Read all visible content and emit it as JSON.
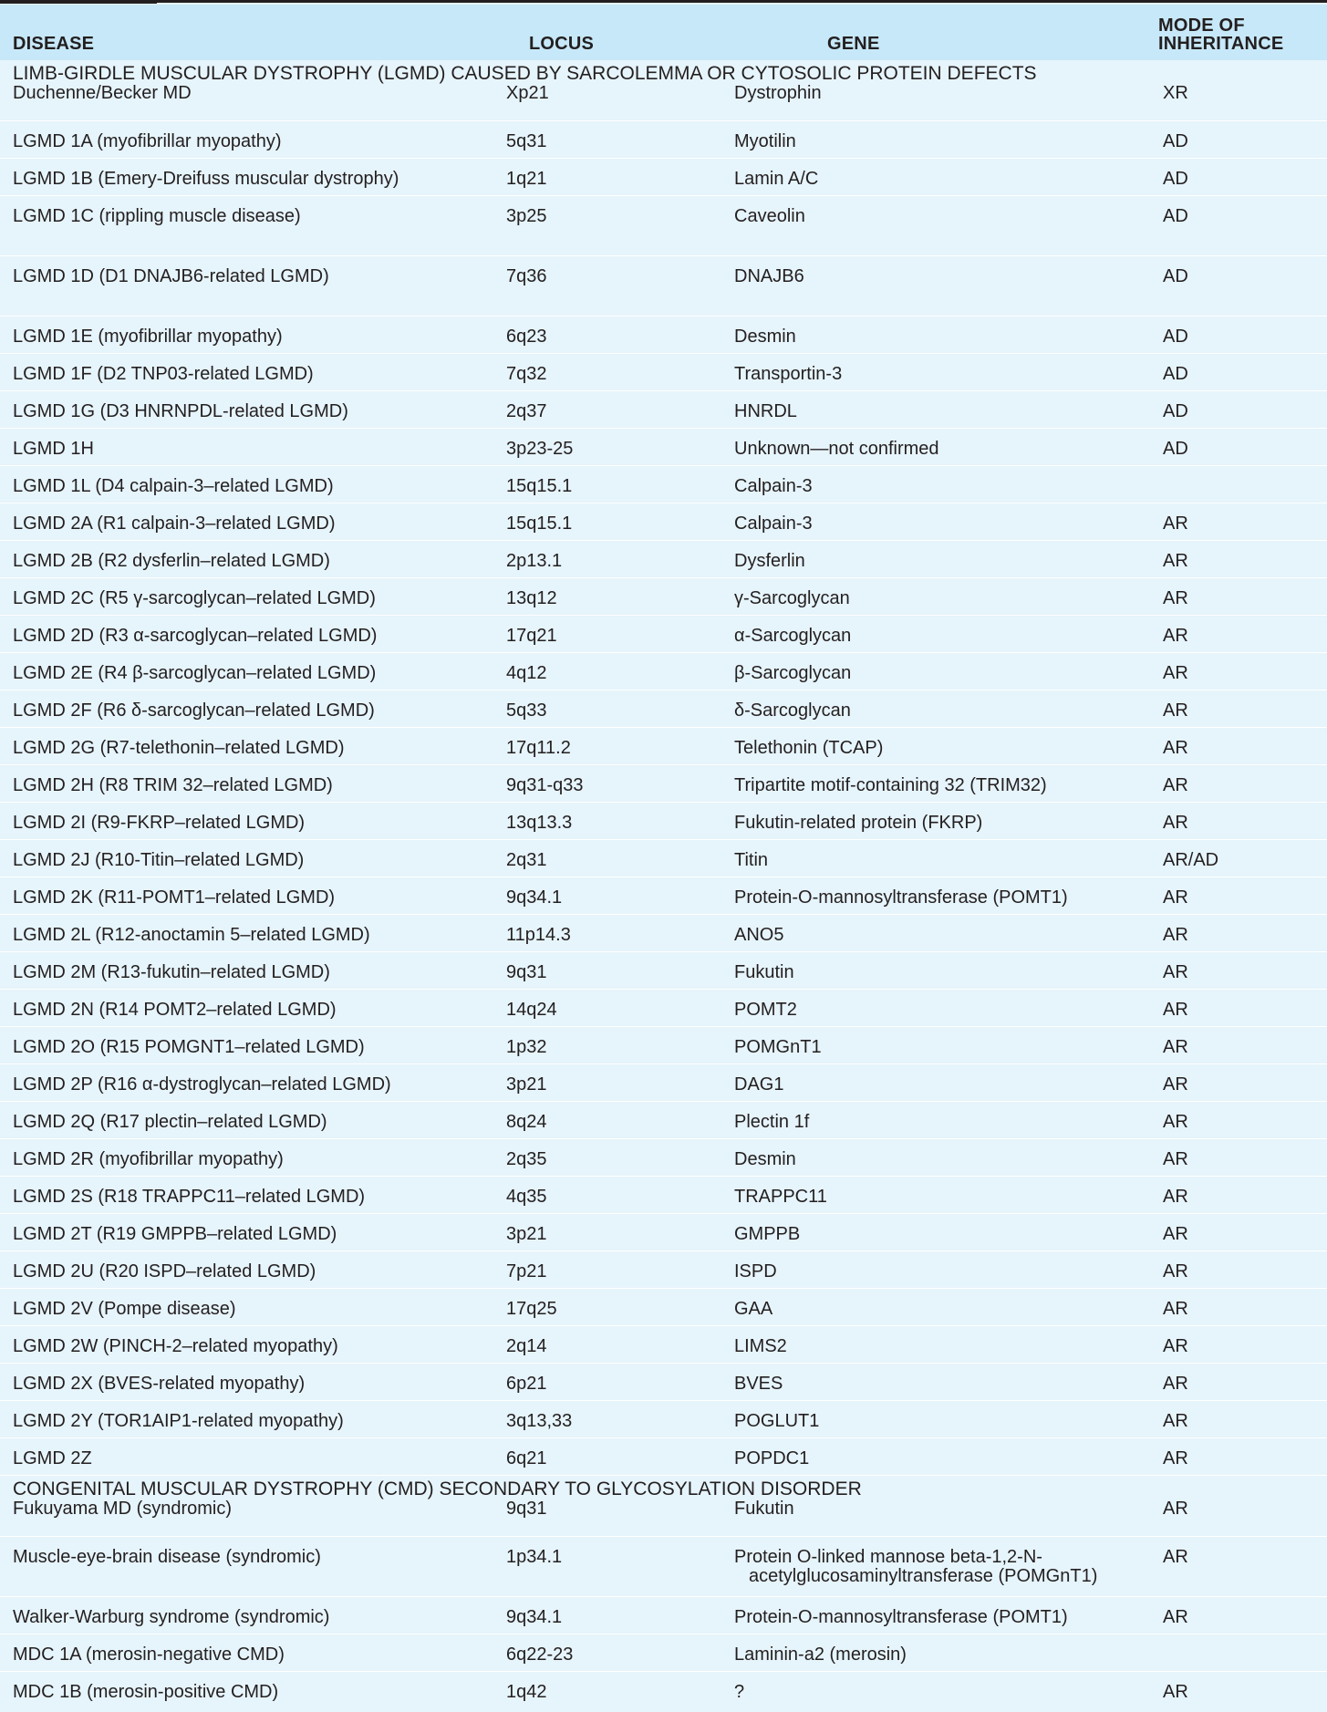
{
  "table": {
    "headers": {
      "disease": "DISEASE",
      "locus": "LOCUS",
      "gene": "GENE",
      "mode": "MODE OF INHERITANCE"
    },
    "sections": [
      {
        "title": "LIMB-GIRDLE MUSCULAR DYSTROPHY (LGMD) CAUSED BY SARCOLEMMA OR CYTOSOLIC PROTEIN DEFECTS",
        "rows": [
          {
            "disease": "Duchenne/Becker MD",
            "locus": "Xp21",
            "gene": "Dystrophin",
            "mode": "XR"
          },
          {
            "disease": "LGMD 1A (myofibrillar myopathy)",
            "locus": "5q31",
            "gene": "Myotilin",
            "mode": "AD"
          },
          {
            "disease": "LGMD 1B (Emery-Dreifuss muscular dystrophy)",
            "locus": "1q21",
            "gene": "Lamin A/C",
            "mode": "AD"
          },
          {
            "disease": "LGMD 1C (rippling muscle disease)",
            "locus": "3p25",
            "gene": "Caveolin",
            "mode": "AD"
          },
          {
            "disease": "LGMD 1D (D1 DNAJB6-related LGMD)",
            "locus": "7q36",
            "gene": "DNAJB6",
            "mode": "AD"
          },
          {
            "disease": "LGMD 1E (myofibrillar myopathy)",
            "locus": "6q23",
            "gene": "Desmin",
            "mode": "AD"
          },
          {
            "disease": "LGMD 1F (D2 TNP03-related LGMD)",
            "locus": "7q32",
            "gene": "Transportin-3",
            "mode": "AD"
          },
          {
            "disease": "LGMD 1G (D3 HNRNPDL-related LGMD)",
            "locus": "2q37",
            "gene": "HNRDL",
            "mode": "AD"
          },
          {
            "disease": "LGMD 1H",
            "locus": "3p23-25",
            "gene": "Unknown—not confirmed",
            "mode": "AD"
          },
          {
            "disease": "LGMD 1L (D4 calpain-3–related LGMD)",
            "locus": "15q15.1",
            "gene": "Calpain-3",
            "mode": ""
          },
          {
            "disease": "LGMD 2A (R1 calpain-3–related LGMD)",
            "locus": "15q15.1",
            "gene": "Calpain-3",
            "mode": "AR"
          },
          {
            "disease": "LGMD 2B (R2 dysferlin–related LGMD)",
            "locus": "2p13.1",
            "gene": "Dysferlin",
            "mode": "AR"
          },
          {
            "disease": "LGMD 2C (R5 γ-sarcoglycan–related LGMD)",
            "locus": "13q12",
            "gene": "γ-Sarcoglycan",
            "mode": "AR"
          },
          {
            "disease": "LGMD 2D (R3 α-sarcoglycan–related LGMD)",
            "locus": "17q21",
            "gene": "α-Sarcoglycan",
            "mode": "AR"
          },
          {
            "disease": "LGMD 2E (R4 β-sarcoglycan–related LGMD)",
            "locus": "4q12",
            "gene": "β-Sarcoglycan",
            "mode": "AR"
          },
          {
            "disease": "LGMD 2F (R6 δ-sarcoglycan–related LGMD)",
            "locus": "5q33",
            "gene": "δ-Sarcoglycan",
            "mode": "AR"
          },
          {
            "disease": "LGMD 2G (R7-telethonin–related LGMD)",
            "locus": "17q11.2",
            "gene": "Telethonin (TCAP)",
            "mode": "AR"
          },
          {
            "disease": "LGMD 2H (R8 TRIM 32–related LGMD)",
            "locus": "9q31-q33",
            "gene": "Tripartite motif-containing 32 (TRIM32)",
            "mode": "AR"
          },
          {
            "disease": "LGMD 2I (R9-FKRP–related LGMD)",
            "locus": "13q13.3",
            "gene": "Fukutin-related protein (FKRP)",
            "mode": "AR"
          },
          {
            "disease": "LGMD 2J (R10-Titin–related LGMD)",
            "locus": "2q31",
            "gene": "Titin",
            "mode": "AR/AD"
          },
          {
            "disease": "LGMD 2K (R11-POMT1–related LGMD)",
            "locus": "9q34.1",
            "gene": "Protein-O-mannosyltransferase (POMT1)",
            "mode": "AR"
          },
          {
            "disease": "LGMD 2L (R12-anoctamin 5–related LGMD)",
            "locus": "11p14.3",
            "gene": "ANO5",
            "mode": "AR"
          },
          {
            "disease": "LGMD 2M (R13-fukutin–related LGMD)",
            "locus": "9q31",
            "gene": "Fukutin",
            "mode": "AR"
          },
          {
            "disease": "LGMD 2N (R14 POMT2–related LGMD)",
            "locus": "14q24",
            "gene": "POMT2",
            "mode": "AR"
          },
          {
            "disease": "LGMD 2O (R15 POMGNT1–related LGMD)",
            "locus": "1p32",
            "gene": "POMGnT1",
            "mode": "AR"
          },
          {
            "disease": "LGMD 2P (R16 α-dystroglycan–related LGMD)",
            "locus": "3p21",
            "gene": "DAG1",
            "mode": "AR"
          },
          {
            "disease": "LGMD 2Q (R17 plectin–related LGMD)",
            "locus": "8q24",
            "gene": "Plectin 1f",
            "mode": "AR"
          },
          {
            "disease": "LGMD 2R (myofibrillar myopathy)",
            "locus": "2q35",
            "gene": "Desmin",
            "mode": "AR"
          },
          {
            "disease": "LGMD 2S (R18 TRAPPC11–related LGMD)",
            "locus": "4q35",
            "gene": "TRAPPC11",
            "mode": "AR"
          },
          {
            "disease": "LGMD 2T (R19 GMPPB–related LGMD)",
            "locus": "3p21",
            "gene": "GMPPB",
            "mode": "AR"
          },
          {
            "disease": "LGMD 2U (R20 ISPD–related LGMD)",
            "locus": "7p21",
            "gene": "ISPD",
            "mode": "AR"
          },
          {
            "disease": "LGMD 2V (Pompe disease)",
            "locus": "17q25",
            "gene": "GAA",
            "mode": "AR"
          },
          {
            "disease": "LGMD 2W (PINCH-2–related myopathy)",
            "locus": "2q14",
            "gene": "LIMS2",
            "mode": "AR"
          },
          {
            "disease": "LGMD 2X (BVES-related myopathy)",
            "locus": "6p21",
            "gene": "BVES",
            "mode": "AR"
          },
          {
            "disease": "LGMD 2Y (TOR1AIP1-related myopathy)",
            "locus": "3q13,33",
            "gene": "POGLUT1",
            "mode": "AR"
          },
          {
            "disease": "LGMD 2Z",
            "locus": "6q21",
            "gene": "POPDC1",
            "mode": "AR"
          }
        ]
      },
      {
        "title": "CONGENITAL MUSCULAR DYSTROPHY (CMD) SECONDARY TO GLYCOSYLATION DISORDER",
        "rows": [
          {
            "disease": "Fukuyama MD (syndromic)",
            "locus": "9q31",
            "gene": "Fukutin",
            "mode": "AR"
          },
          {
            "disease": "Muscle-eye-brain disease (syndromic)",
            "locus": "1p34.1",
            "gene": "Protein O-linked mannose beta-1,2-N-acetylglucosaminyltransferase (POMGnT1)",
            "mode": "AR"
          },
          {
            "disease": "Walker-Warburg syndrome (syndromic)",
            "locus": "9q34.1",
            "gene": "Protein-O-mannosyltransferase (POMT1)",
            "mode": "AR"
          },
          {
            "disease": "MDC 1A (merosin-negative CMD)",
            "locus": "6q22-23",
            "gene": "Laminin-a2 (merosin)",
            "mode": ""
          },
          {
            "disease": "MDC 1B (merosin-positive CMD)",
            "locus": "1q42",
            "gene": "?",
            "mode": "AR"
          }
        ]
      }
    ]
  }
}
